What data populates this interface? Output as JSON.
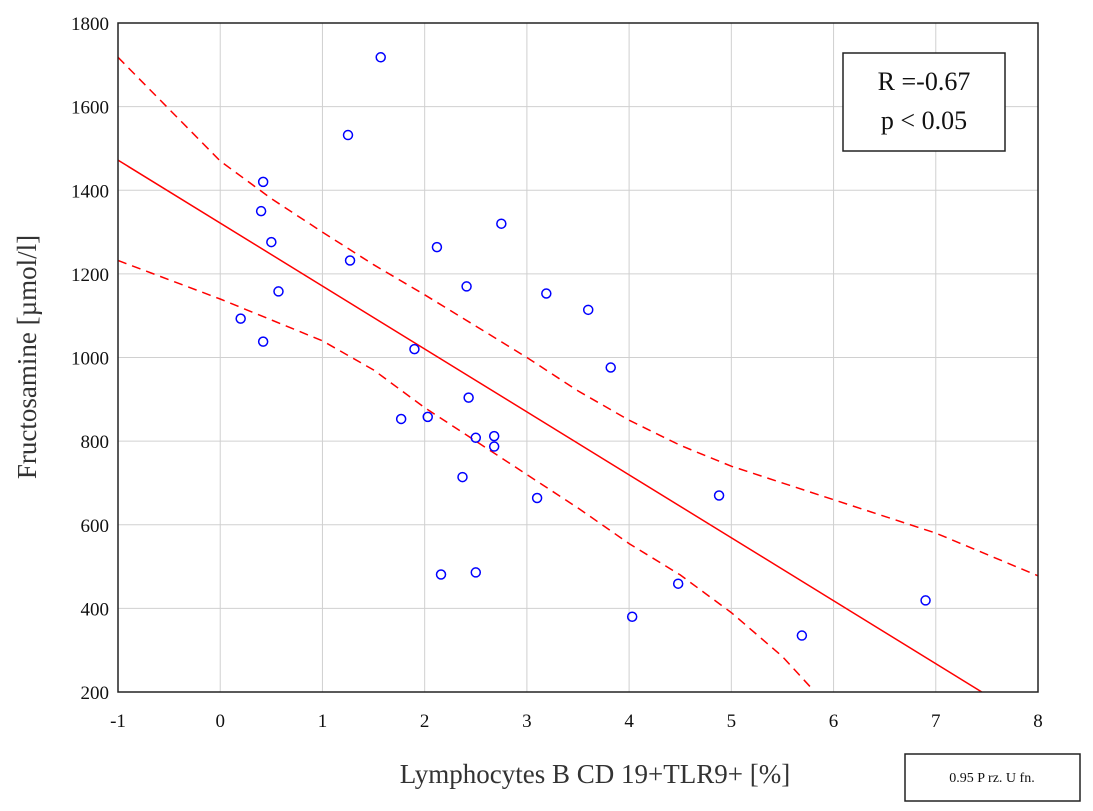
{
  "chart_data": {
    "type": "scatter",
    "xlabel": "Lymphocytes B CD 19+TLR9+ [%]",
    "ylabel": "Fructosamine [µmol/l]",
    "xlim": [
      -1,
      8
    ],
    "ylim": [
      200,
      1800
    ],
    "x_ticks": [
      "-1",
      "0",
      "1",
      "2",
      "3",
      "4",
      "5",
      "6",
      "7",
      "8"
    ],
    "y_ticks": [
      "200",
      "400",
      "600",
      "800",
      "1000",
      "1200",
      "1400",
      "1600",
      "1800"
    ],
    "grid": true,
    "marker_color": "#0000ff",
    "fit_color": "#ff0000",
    "points": [
      {
        "x": 0.2,
        "y": 1093
      },
      {
        "x": 0.4,
        "y": 1350
      },
      {
        "x": 0.42,
        "y": 1420
      },
      {
        "x": 0.42,
        "y": 1038
      },
      {
        "x": 0.5,
        "y": 1276
      },
      {
        "x": 0.57,
        "y": 1158
      },
      {
        "x": 1.25,
        "y": 1532
      },
      {
        "x": 1.27,
        "y": 1232
      },
      {
        "x": 1.57,
        "y": 1718
      },
      {
        "x": 1.77,
        "y": 853
      },
      {
        "x": 1.9,
        "y": 1020
      },
      {
        "x": 2.03,
        "y": 858
      },
      {
        "x": 2.12,
        "y": 1264
      },
      {
        "x": 2.16,
        "y": 481
      },
      {
        "x": 2.37,
        "y": 714
      },
      {
        "x": 2.41,
        "y": 1170
      },
      {
        "x": 2.43,
        "y": 904
      },
      {
        "x": 2.5,
        "y": 808
      },
      {
        "x": 2.5,
        "y": 486
      },
      {
        "x": 2.68,
        "y": 812
      },
      {
        "x": 2.68,
        "y": 787
      },
      {
        "x": 2.75,
        "y": 1320
      },
      {
        "x": 3.1,
        "y": 664
      },
      {
        "x": 3.19,
        "y": 1153
      },
      {
        "x": 3.6,
        "y": 1114
      },
      {
        "x": 3.82,
        "y": 976
      },
      {
        "x": 4.03,
        "y": 380
      },
      {
        "x": 4.48,
        "y": 459
      },
      {
        "x": 4.88,
        "y": 670
      },
      {
        "x": 5.69,
        "y": 335
      },
      {
        "x": 6.9,
        "y": 419
      }
    ],
    "fit_line": {
      "x": [
        -1,
        7.45
      ],
      "y": [
        1472,
        200
      ]
    },
    "upper_band": {
      "x": [
        -1,
        0,
        0.5,
        1,
        1.5,
        2,
        2.5,
        3,
        3.5,
        4,
        4.5,
        5,
        6,
        7,
        8
      ],
      "y": [
        1718,
        1470,
        1380,
        1300,
        1222,
        1150,
        1075,
        1000,
        920,
        850,
        790,
        740,
        660,
        580,
        478
      ]
    },
    "lower_band": {
      "x": [
        -1,
        0,
        0.5,
        1,
        1.5,
        2,
        2.5,
        3,
        3.5,
        4,
        4.5,
        5,
        5.5,
        5.8
      ],
      "y": [
        1232,
        1140,
        1090,
        1040,
        970,
        880,
        800,
        720,
        640,
        555,
        480,
        390,
        285,
        205
      ]
    },
    "stats": {
      "r": "R =-0.67",
      "p": "p < 0.05"
    },
    "legend_note": "0.95 P rz. U fn."
  }
}
